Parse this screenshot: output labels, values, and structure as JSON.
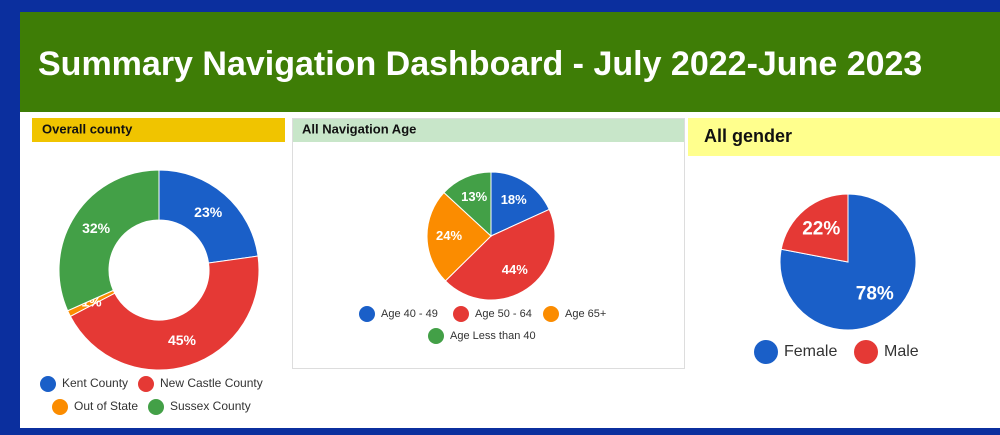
{
  "title": "Summary Navigation Dashboard - July 2022-June 2023",
  "chart_data": [
    {
      "type": "donut",
      "title": "Overall county",
      "categories": [
        "Kent County",
        "New Castle County",
        "Out of State",
        "Sussex County"
      ],
      "values": [
        23,
        45,
        1,
        32
      ],
      "value_labels": [
        "23%",
        "45%",
        "1%",
        "32%"
      ],
      "colors": [
        "#1a5fc8",
        "#e53935",
        "#fb8c00",
        "#43a047"
      ],
      "legend": "bottom"
    },
    {
      "type": "pie",
      "title": "All Navigation Age",
      "categories": [
        "Age 40 - 49",
        "Age 50 - 64",
        "Age 65+",
        "Age Less than 40"
      ],
      "values": [
        18,
        44,
        24,
        13
      ],
      "value_labels": [
        "18%",
        "44%",
        "24%",
        "13%"
      ],
      "colors": [
        "#1a5fc8",
        "#e53935",
        "#fb8c00",
        "#43a047"
      ],
      "legend": "bottom"
    },
    {
      "type": "pie",
      "title": "All gender",
      "categories": [
        "Female",
        "Male"
      ],
      "values": [
        78,
        22
      ],
      "value_labels": [
        "78%",
        "22%"
      ],
      "colors": [
        "#1a5fc8",
        "#e53935"
      ],
      "legend": "bottom"
    }
  ]
}
